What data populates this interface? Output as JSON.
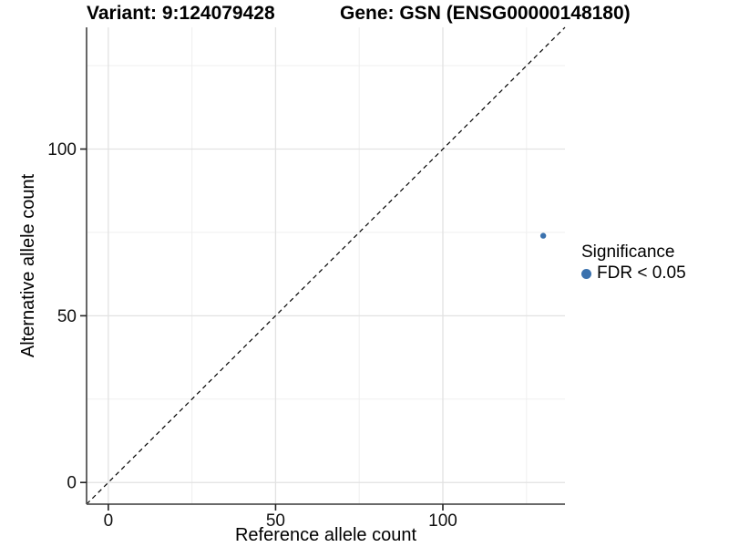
{
  "titles": {
    "variant": "Variant: 9:124079428",
    "gene": "Gene: GSN (ENSG00000148180)"
  },
  "axes": {
    "x": {
      "title": "Reference allele count",
      "tick_labels": [
        "0",
        "50",
        "100"
      ],
      "tick_values": [
        0,
        50,
        100
      ],
      "minor_values": [
        25,
        75,
        125
      ]
    },
    "y": {
      "title": "Alternative allele count",
      "tick_labels": [
        "0",
        "50",
        "100"
      ],
      "tick_values": [
        0,
        50,
        100
      ],
      "minor_values": [
        25,
        75,
        125
      ]
    }
  },
  "legend": {
    "title": "Significance",
    "items": [
      {
        "label": "FDR < 0.05",
        "marker": "circle-icon",
        "color": "#3b72ae"
      }
    ]
  },
  "chart_data": {
    "type": "scatter",
    "title": "Variant: 9:124079428 | Gene: GSN (ENSG00000148180)",
    "xlabel": "Reference allele count",
    "ylabel": "Alternative allele count",
    "xlim": [
      -6.5,
      136.5
    ],
    "ylim": [
      -6.5,
      136.5
    ],
    "x_ticks": [
      0,
      50,
      100
    ],
    "y_ticks": [
      0,
      50,
      100
    ],
    "grid": "major+minor",
    "legend_position": "right",
    "series": [
      {
        "name": "FDR < 0.05",
        "color": "#3b72ae",
        "points": [
          {
            "x": 130,
            "y": 74
          }
        ]
      }
    ],
    "reference_line": {
      "kind": "identity y=x",
      "slope": 1,
      "intercept": 0,
      "style": "dashed",
      "color": "#000000"
    }
  },
  "colors": {
    "point": "#3b72ae",
    "grid_major": "#e2e2e2",
    "grid_minor": "#efefef",
    "axis_line": "#555555",
    "tick_mark": "#222222",
    "reference_line": "#000000",
    "background": "#ffffff"
  }
}
